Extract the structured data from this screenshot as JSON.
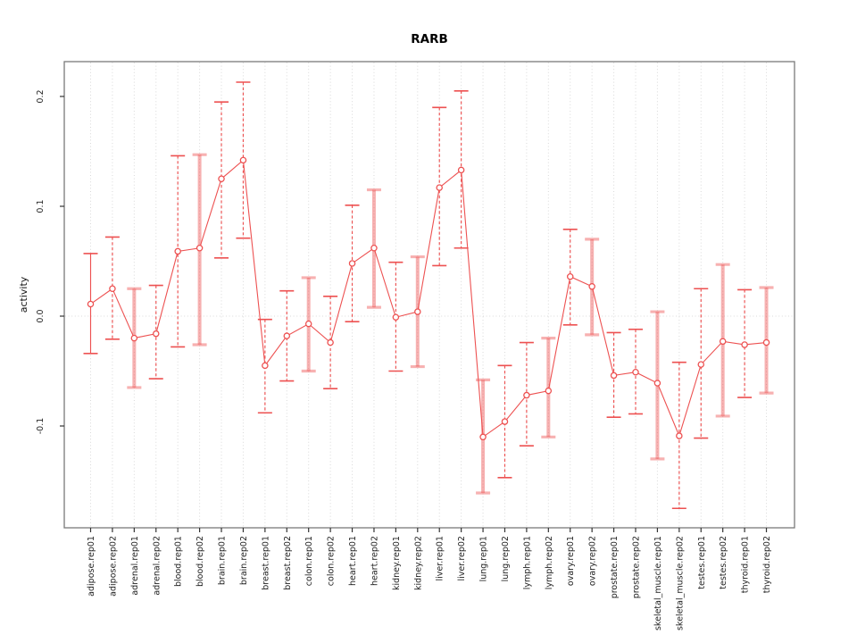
{
  "title": "RARB",
  "colors": {
    "series": "#ed5151",
    "series_pale": "rgba(237,81,81,0.45)",
    "grid": "#d9d9d9",
    "frame": "#7a7a7a",
    "tick": "#333333",
    "text": "#222222",
    "title": "#000000"
  },
  "chart_data": {
    "type": "errorbar-line",
    "title": "RARB",
    "xlabel": "",
    "ylabel": "activity",
    "ylim": [
      -0.193,
      0.232
    ],
    "yticks": [
      -0.1,
      0.0,
      0.1,
      0.2
    ],
    "ytick_labels": [
      "-0.1",
      "0.0",
      "0.1",
      "0.2"
    ],
    "grid": "vertical dotted line at every category; horizontal dotted line at y=0",
    "legend": "none",
    "marker": "open-circle",
    "categories": [
      "adipose.rep01",
      "adipose.rep02",
      "adrenal.rep01",
      "adrenal.rep02",
      "blood.rep01",
      "blood.rep02",
      "brain.rep01",
      "brain.rep02",
      "breast.rep01",
      "breast.rep02",
      "colon.rep01",
      "colon.rep02",
      "heart.rep01",
      "heart.rep02",
      "kidney.rep01",
      "kidney.rep02",
      "liver.rep01",
      "liver.rep02",
      "lung.rep01",
      "lung.rep02",
      "lymph.rep01",
      "lymph.rep02",
      "ovary.rep01",
      "ovary.rep02",
      "prostate.rep01",
      "prostate.rep02",
      "skeletal_muscle.rep01",
      "skeletal_muscle.rep02",
      "testes.rep01",
      "testes.rep02",
      "thyroid.rep01",
      "thyroid.rep02"
    ],
    "points": [
      {
        "label": "adipose.rep01",
        "value": 0.011,
        "lo": -0.034,
        "hi": 0.057,
        "bar_style": "solid"
      },
      {
        "label": "adipose.rep02",
        "value": 0.025,
        "lo": -0.021,
        "hi": 0.072,
        "bar_style": "dashed"
      },
      {
        "label": "adrenal.rep01",
        "value": -0.02,
        "lo": -0.065,
        "hi": 0.025,
        "bar_style": "thick"
      },
      {
        "label": "adrenal.rep02",
        "value": -0.016,
        "lo": -0.057,
        "hi": 0.028,
        "bar_style": "dashed"
      },
      {
        "label": "blood.rep01",
        "value": 0.059,
        "lo": -0.028,
        "hi": 0.146,
        "bar_style": "dashed"
      },
      {
        "label": "blood.rep02",
        "value": 0.062,
        "lo": -0.026,
        "hi": 0.147,
        "bar_style": "thick"
      },
      {
        "label": "brain.rep01",
        "value": 0.125,
        "lo": 0.053,
        "hi": 0.195,
        "bar_style": "dashed"
      },
      {
        "label": "brain.rep02",
        "value": 0.142,
        "lo": 0.071,
        "hi": 0.213,
        "bar_style": "dashed"
      },
      {
        "label": "breast.rep01",
        "value": -0.045,
        "lo": -0.088,
        "hi": -0.003,
        "bar_style": "dashed"
      },
      {
        "label": "breast.rep02",
        "value": -0.018,
        "lo": -0.059,
        "hi": 0.023,
        "bar_style": "dashed"
      },
      {
        "label": "colon.rep01",
        "value": -0.007,
        "lo": -0.05,
        "hi": 0.035,
        "bar_style": "thick"
      },
      {
        "label": "colon.rep02",
        "value": -0.024,
        "lo": -0.066,
        "hi": 0.018,
        "bar_style": "dashed"
      },
      {
        "label": "heart.rep01",
        "value": 0.048,
        "lo": -0.005,
        "hi": 0.101,
        "bar_style": "dashed"
      },
      {
        "label": "heart.rep02",
        "value": 0.062,
        "lo": 0.008,
        "hi": 0.115,
        "bar_style": "thick"
      },
      {
        "label": "kidney.rep01",
        "value": -0.001,
        "lo": -0.05,
        "hi": 0.049,
        "bar_style": "dashed"
      },
      {
        "label": "kidney.rep02",
        "value": 0.004,
        "lo": -0.046,
        "hi": 0.054,
        "bar_style": "thick"
      },
      {
        "label": "liver.rep01",
        "value": 0.117,
        "lo": 0.046,
        "hi": 0.19,
        "bar_style": "dashed"
      },
      {
        "label": "liver.rep02",
        "value": 0.133,
        "lo": 0.062,
        "hi": 0.205,
        "bar_style": "dashed"
      },
      {
        "label": "lung.rep01",
        "value": -0.11,
        "lo": -0.161,
        "hi": -0.058,
        "bar_style": "thick"
      },
      {
        "label": "lung.rep02",
        "value": -0.096,
        "lo": -0.147,
        "hi": -0.045,
        "bar_style": "dashed"
      },
      {
        "label": "lymph.rep01",
        "value": -0.072,
        "lo": -0.118,
        "hi": -0.024,
        "bar_style": "dashed"
      },
      {
        "label": "lymph.rep02",
        "value": -0.068,
        "lo": -0.11,
        "hi": -0.02,
        "bar_style": "thick"
      },
      {
        "label": "ovary.rep01",
        "value": 0.036,
        "lo": -0.008,
        "hi": 0.079,
        "bar_style": "dashed"
      },
      {
        "label": "ovary.rep02",
        "value": 0.027,
        "lo": -0.017,
        "hi": 0.07,
        "bar_style": "thick"
      },
      {
        "label": "prostate.rep01",
        "value": -0.054,
        "lo": -0.092,
        "hi": -0.015,
        "bar_style": "dashed"
      },
      {
        "label": "prostate.rep02",
        "value": -0.051,
        "lo": -0.089,
        "hi": -0.012,
        "bar_style": "dashed"
      },
      {
        "label": "skeletal_muscle.rep01",
        "value": -0.061,
        "lo": -0.13,
        "hi": 0.004,
        "bar_style": "thick"
      },
      {
        "label": "skeletal_muscle.rep02",
        "value": -0.109,
        "lo": -0.175,
        "hi": -0.042,
        "bar_style": "dashed"
      },
      {
        "label": "testes.rep01",
        "value": -0.044,
        "lo": -0.111,
        "hi": 0.025,
        "bar_style": "dashed"
      },
      {
        "label": "testes.rep02",
        "value": -0.023,
        "lo": -0.091,
        "hi": 0.047,
        "bar_style": "thick"
      },
      {
        "label": "thyroid.rep01",
        "value": -0.026,
        "lo": -0.074,
        "hi": 0.024,
        "bar_style": "dashed"
      },
      {
        "label": "thyroid.rep02",
        "value": -0.024,
        "lo": -0.07,
        "hi": 0.026,
        "bar_style": "thick"
      }
    ]
  }
}
